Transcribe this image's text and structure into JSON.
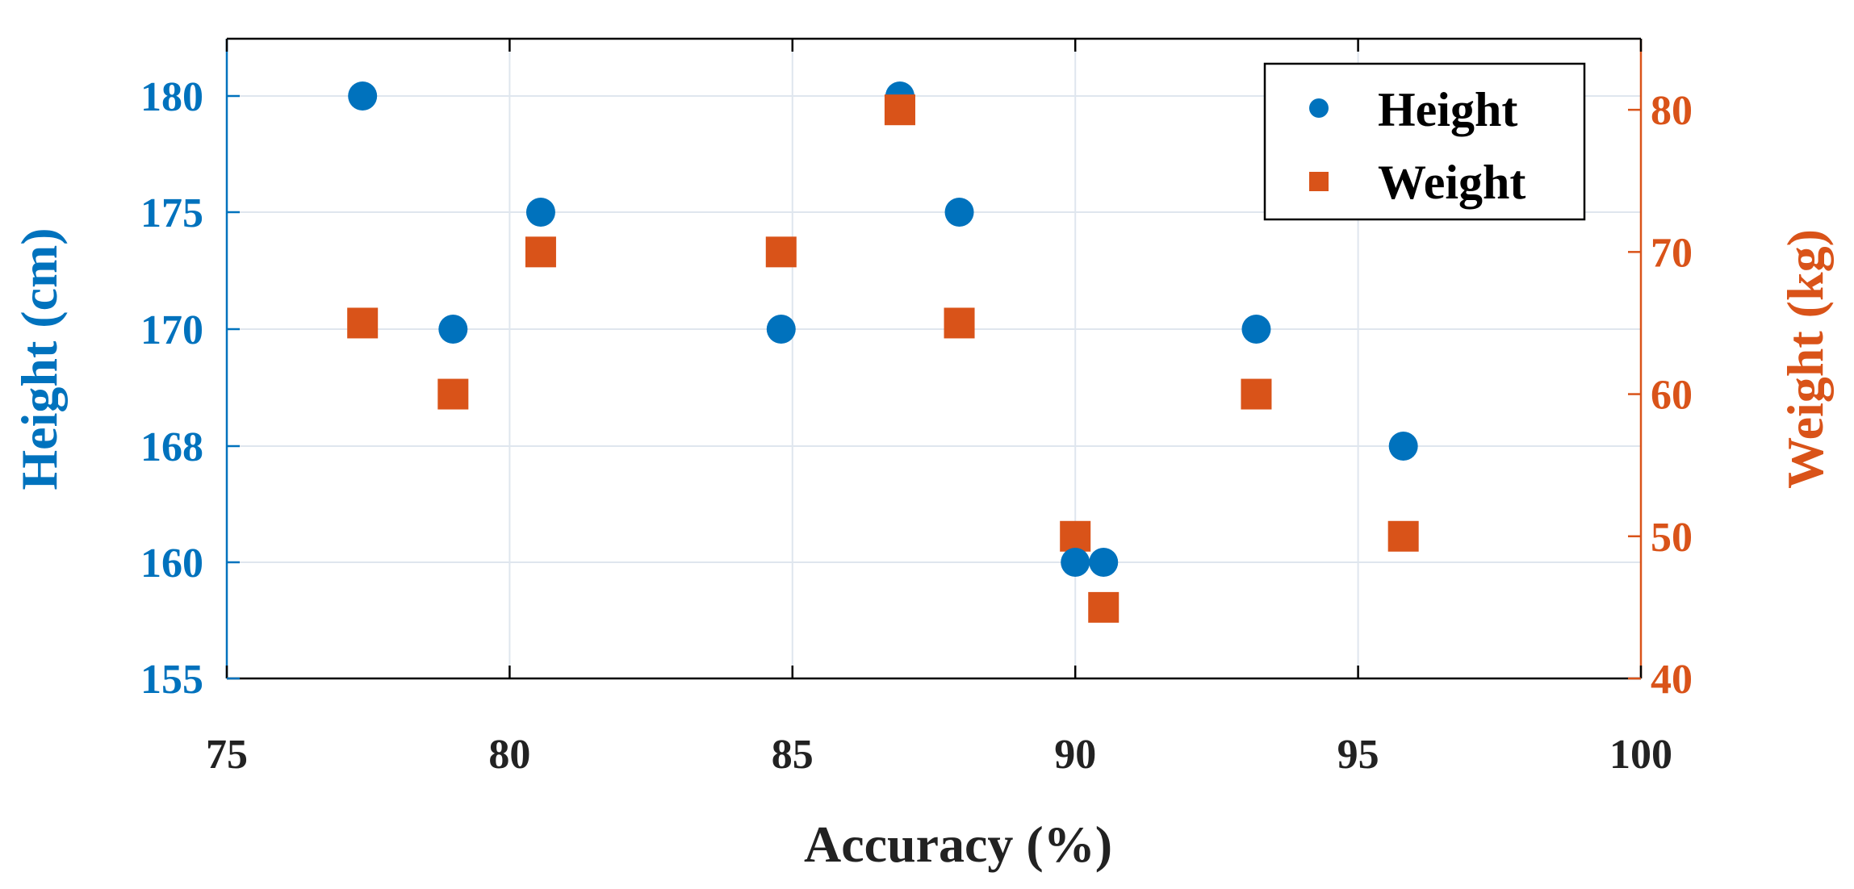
{
  "chart_data": {
    "type": "scatter",
    "title": "",
    "xlabel": "Accuracy (%)",
    "ylabel_left": "Height (cm)",
    "ylabel_right": "Weight (kg)",
    "xlim": [
      75,
      100
    ],
    "x_ticks": [
      75,
      80,
      85,
      90,
      95,
      100
    ],
    "x_tick_labels": [
      "75",
      "80",
      "85",
      "90",
      "95",
      "100"
    ],
    "y_left_tick_labels": [
      "155",
      "160",
      "168",
      "170",
      "175",
      "180"
    ],
    "y_right_lim": [
      40,
      85
    ],
    "y_right_ticks": [
      40,
      50,
      60,
      70,
      80
    ],
    "y_right_tick_labels": [
      "40",
      "50",
      "60",
      "70",
      "80"
    ],
    "grid": true,
    "legend_position": "top-right",
    "series": [
      {
        "name": "Height",
        "axis": "left",
        "marker": "circle",
        "color": "#0072BD",
        "points": [
          {
            "x": 77.4,
            "y": 180
          },
          {
            "x": 79.0,
            "y": 170
          },
          {
            "x": 80.55,
            "y": 175
          },
          {
            "x": 84.8,
            "y": 170
          },
          {
            "x": 86.9,
            "y": 180
          },
          {
            "x": 87.95,
            "y": 175
          },
          {
            "x": 90.0,
            "y": 160
          },
          {
            "x": 90.5,
            "y": 160
          },
          {
            "x": 93.2,
            "y": 170
          },
          {
            "x": 95.8,
            "y": 168
          }
        ]
      },
      {
        "name": "Weight",
        "axis": "right",
        "marker": "square",
        "color": "#D95319",
        "points": [
          {
            "x": 77.4,
            "y": 65
          },
          {
            "x": 79.0,
            "y": 60
          },
          {
            "x": 80.55,
            "y": 70
          },
          {
            "x": 84.8,
            "y": 70
          },
          {
            "x": 86.9,
            "y": 80
          },
          {
            "x": 87.95,
            "y": 65
          },
          {
            "x": 90.0,
            "y": 50
          },
          {
            "x": 90.5,
            "y": 45
          },
          {
            "x": 93.2,
            "y": 60
          },
          {
            "x": 95.8,
            "y": 50
          }
        ]
      }
    ]
  },
  "colors": {
    "left_axis": "#0072BD",
    "right_axis": "#D95319",
    "grid": "#dfe6ee",
    "frame": "#000000"
  }
}
